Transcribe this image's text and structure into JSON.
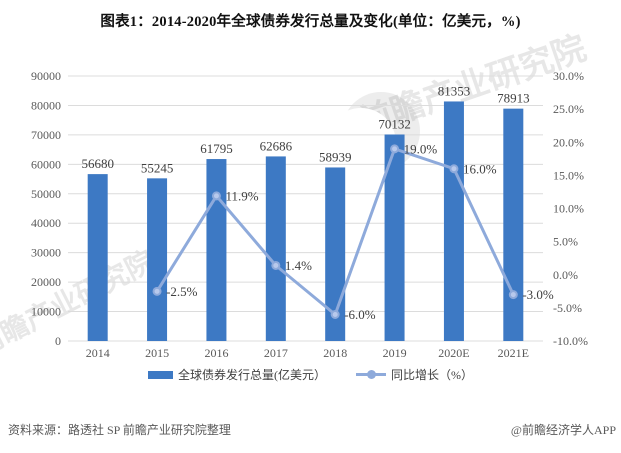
{
  "title": "图表1：2014-2020年全球债券发行总量及变化(单位：亿美元，%)",
  "watermark": {
    "text": "前瞻产业研究院"
  },
  "chart_data": {
    "type": "bar+line",
    "title": "图表1：2014-2020年全球债券发行总量及变化(单位：亿美元，%)",
    "categories": [
      "2014",
      "2015",
      "2016",
      "2017",
      "2018",
      "2019",
      "2020E",
      "2021E"
    ],
    "series": [
      {
        "name": "全球债券发行总量(亿美元）",
        "type": "bar",
        "axis": "left",
        "color": "#3D79C4",
        "values": [
          56680,
          55245,
          61795,
          62686,
          58939,
          70132,
          81353,
          78913
        ],
        "labels": [
          "56680",
          "55245",
          "61795",
          "62686",
          "58939",
          "70132",
          "81353",
          "78913"
        ]
      },
      {
        "name": "同比增长（%）",
        "type": "line",
        "axis": "right",
        "color": "#8EAADB",
        "marker_color": "#B8C9EC",
        "values": [
          null,
          -2.5,
          11.9,
          1.4,
          -6.0,
          19.0,
          16.0,
          -3.0
        ],
        "labels": [
          "",
          "-2.5%",
          "11.9%",
          "1.4%",
          "-6.0%",
          "19.0%",
          "16.0%",
          "-3.0%"
        ]
      }
    ],
    "left_axis": {
      "min": 0,
      "max": 90000,
      "step": 10000,
      "ticks": [
        "0",
        "10000",
        "20000",
        "30000",
        "40000",
        "50000",
        "60000",
        "70000",
        "80000",
        "90000"
      ]
    },
    "right_axis": {
      "min": -10,
      "max": 30,
      "step": 5,
      "ticks": [
        "-10.0%",
        "-5.0%",
        "0.0%",
        "5.0%",
        "10.0%",
        "15.0%",
        "20.0%",
        "25.0%",
        "30.0%"
      ]
    },
    "grid": true,
    "grid_color": "#DCDCDC",
    "legend_position": "bottom"
  },
  "footer": {
    "source": "资料来源：路透社 SP 前瞻产业研究院整理",
    "brand": "@前瞻经济学人APP"
  }
}
